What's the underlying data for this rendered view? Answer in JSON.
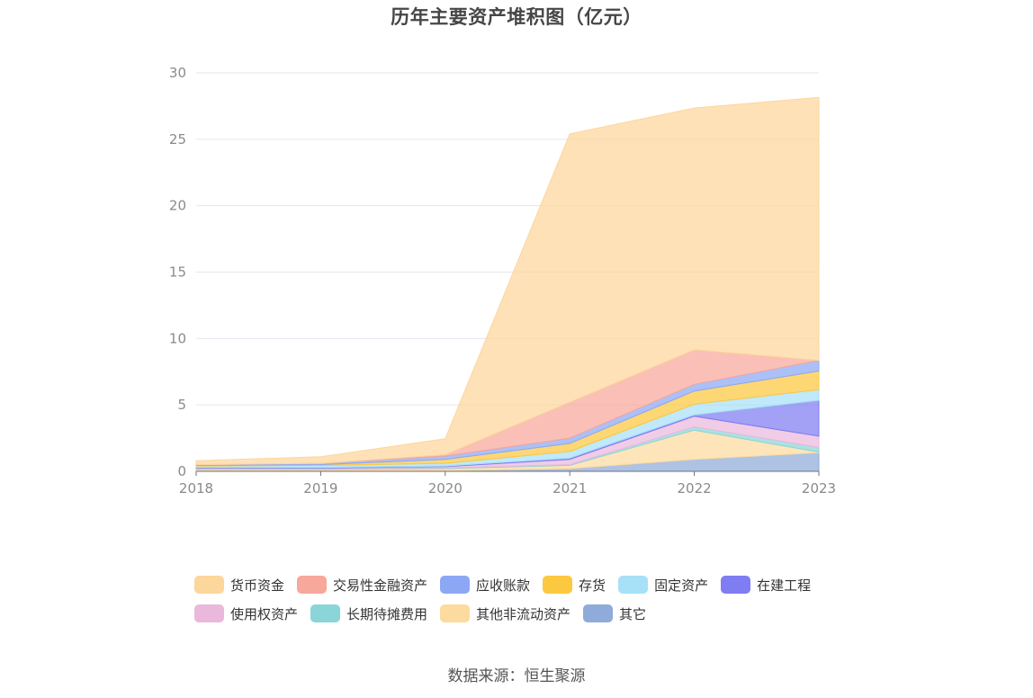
{
  "chart_data": {
    "type": "area",
    "stacked": true,
    "title": "历年主要资产堆积图（亿元）",
    "x": [
      "2018",
      "2019",
      "2020",
      "2021",
      "2022",
      "2023"
    ],
    "ylim": [
      0,
      30
    ],
    "yticks": [
      0,
      5,
      10,
      15,
      20,
      25,
      30
    ],
    "grid": true,
    "legend_position": "bottom",
    "series": [
      {
        "name": "其它",
        "color": "#8fabd9",
        "values": [
          0.05,
          0.05,
          0.05,
          0.2,
          0.9,
          1.4
        ]
      },
      {
        "name": "其他非流动资产",
        "color": "#fddb9e",
        "values": [
          0.1,
          0.1,
          0.15,
          0.25,
          2.2,
          0.05
        ]
      },
      {
        "name": "长期待摊费用",
        "color": "#8ad5d8",
        "values": [
          0.05,
          0.05,
          0.05,
          0.05,
          0.25,
          0.35
        ]
      },
      {
        "name": "使用权资产",
        "color": "#eab8dc",
        "values": [
          0.05,
          0.05,
          0.1,
          0.4,
          0.8,
          0.85
        ]
      },
      {
        "name": "在建工程",
        "color": "#7f7df2",
        "values": [
          0.05,
          0.05,
          0.05,
          0.1,
          0.1,
          2.7
        ]
      },
      {
        "name": "固定资产",
        "color": "#a8e0f8",
        "values": [
          0.1,
          0.15,
          0.2,
          0.5,
          0.8,
          0.8
        ]
      },
      {
        "name": "存货",
        "color": "#fcc83f",
        "values": [
          0.05,
          0.05,
          0.3,
          0.6,
          1.0,
          1.4
        ]
      },
      {
        "name": "应收账款",
        "color": "#8ca8f5",
        "values": [
          0.05,
          0.1,
          0.25,
          0.4,
          0.5,
          0.8
        ]
      },
      {
        "name": "交易性金融资产",
        "color": "#f8a79b",
        "values": [
          0.0,
          0.0,
          0.1,
          2.7,
          2.6,
          0.0
        ]
      },
      {
        "name": "货币资金",
        "color": "#fdd69b",
        "values": [
          0.3,
          0.5,
          1.2,
          20.2,
          18.2,
          19.8
        ]
      }
    ]
  },
  "legend": [
    {
      "name": "货币资金",
      "color": "#fdd69b"
    },
    {
      "name": "交易性金融资产",
      "color": "#f8a79b"
    },
    {
      "name": "应收账款",
      "color": "#8ca8f5"
    },
    {
      "name": "存货",
      "color": "#fcc83f"
    },
    {
      "name": "固定资产",
      "color": "#a8e0f8"
    },
    {
      "name": "在建工程",
      "color": "#7f7df2"
    },
    {
      "name": "使用权资产",
      "color": "#eab8dc"
    },
    {
      "name": "长期待摊费用",
      "color": "#8ad5d8"
    },
    {
      "name": "其他非流动资产",
      "color": "#fddb9e"
    },
    {
      "name": "其它",
      "color": "#8fabd9"
    }
  ],
  "source": "数据来源：恒生聚源"
}
